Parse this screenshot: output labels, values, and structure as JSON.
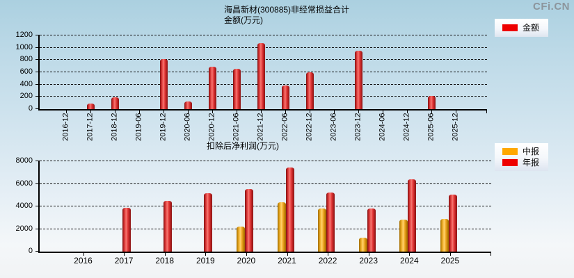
{
  "watermark": "CFi.CN",
  "chart_data": [
    {
      "type": "bar",
      "title": "海昌新材(300885)非经常损益合计",
      "subtitle": "金额(万元)",
      "legend_position": "top-right",
      "grid": "horizontal-dashed",
      "ylim": [
        0,
        1200
      ],
      "yticks": [
        0,
        200,
        400,
        600,
        800,
        1000,
        1200
      ],
      "x_label_rotation": -90,
      "categories": [
        "2016-12",
        "2017-12",
        "2018-12",
        "2019-06",
        "2019-12",
        "2020-06",
        "2020-12",
        "2021-06",
        "2021-12",
        "2022-06",
        "2022-12",
        "2023-06",
        "2023-12",
        "2024-06",
        "2024-12",
        "2025-06",
        "2025-12"
      ],
      "series": [
        {
          "name": "金额",
          "color": "red",
          "color_hex": "#ee0000",
          "values": [
            null,
            90,
            190,
            null,
            820,
            130,
            690,
            660,
            1070,
            380,
            600,
            null,
            950,
            null,
            null,
            220,
            null
          ]
        }
      ]
    },
    {
      "type": "bar",
      "title": "扣除后净利润(万元)",
      "legend_position": "right",
      "grid": "horizontal-dashed",
      "ylim": [
        0,
        8000
      ],
      "yticks": [
        0,
        2000,
        4000,
        6000,
        8000
      ],
      "x_label_rotation": 0,
      "categories": [
        "2016",
        "2017",
        "2018",
        "2019",
        "2020",
        "2021",
        "2022",
        "2023",
        "2024",
        "2025"
      ],
      "series": [
        {
          "name": "中报",
          "color": "orange",
          "color_hex": "#ffa800",
          "values": [
            null,
            null,
            null,
            null,
            2200,
            4350,
            3800,
            1250,
            2800,
            2900
          ]
        },
        {
          "name": "年报",
          "color": "red",
          "color_hex": "#ee0000",
          "values": [
            null,
            3900,
            4500,
            5150,
            5550,
            7450,
            5200,
            3800,
            6400,
            5050
          ]
        }
      ]
    }
  ]
}
